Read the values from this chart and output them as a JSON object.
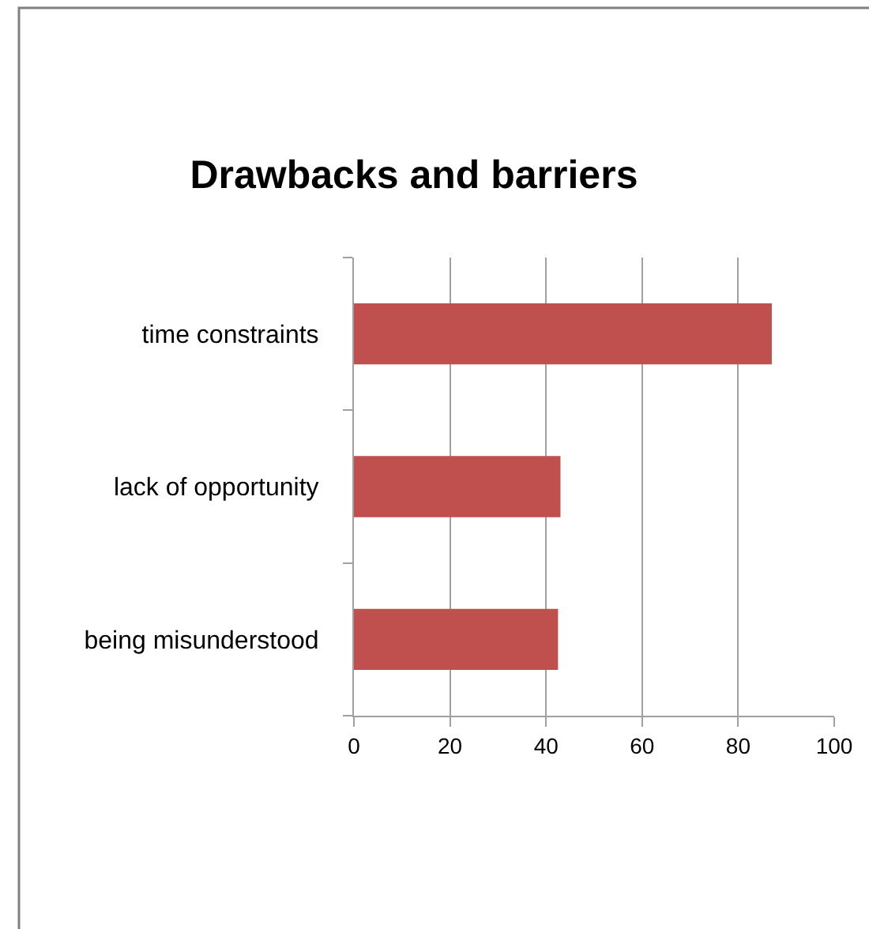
{
  "chart_data": {
    "type": "bar",
    "title": "Drawbacks and barriers",
    "orientation": "horizontal",
    "categories": [
      "time constraints",
      "lack of opportunity",
      "being misunderstood"
    ],
    "values": [
      87,
      43,
      42.5
    ],
    "color": "#c0504d",
    "xlim": [
      0,
      100
    ],
    "xticks": [
      0,
      20,
      40,
      60,
      80,
      100
    ],
    "grid": "x"
  }
}
